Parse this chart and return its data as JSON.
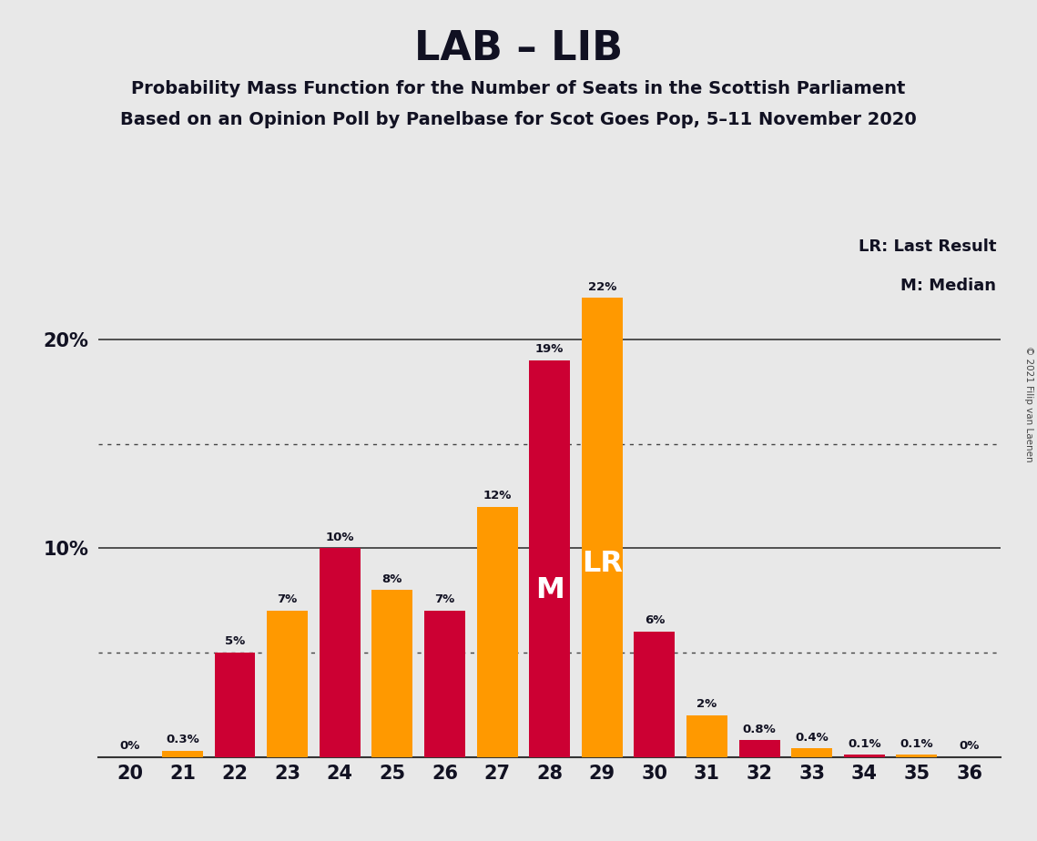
{
  "title": "LAB – LIB",
  "subtitle1": "Probability Mass Function for the Number of Seats in the Scottish Parliament",
  "subtitle2": "Based on an Opinion Poll by Panelbase for Scot Goes Pop, 5–11 November 2020",
  "copyright": "© 2021 Filip van Laenen",
  "legend_lr": "LR: Last Result",
  "legend_m": "M: Median",
  "seats": [
    20,
    21,
    22,
    23,
    24,
    25,
    26,
    27,
    28,
    29,
    30,
    31,
    32,
    33,
    34,
    35,
    36
  ],
  "values": [
    0.0,
    0.3,
    5.0,
    7.0,
    10.0,
    8.0,
    7.0,
    12.0,
    19.0,
    22.0,
    6.0,
    2.0,
    0.8,
    0.4,
    0.1,
    0.1,
    0.0
  ],
  "labels": [
    "0%",
    "0.3%",
    "5%",
    "7%",
    "10%",
    "8%",
    "7%",
    "12%",
    "19%",
    "22%",
    "6%",
    "2%",
    "0.8%",
    "0.4%",
    "0.1%",
    "0.1%",
    "0%"
  ],
  "colors": [
    "#CC0033",
    "#FF9900",
    "#CC0033",
    "#FF9900",
    "#CC0033",
    "#FF9900",
    "#CC0033",
    "#FF9900",
    "#CC0033",
    "#FF9900",
    "#CC0033",
    "#FF9900",
    "#CC0033",
    "#FF9900",
    "#CC0033",
    "#FF9900",
    "#CC0033"
  ],
  "median_seat": 28,
  "lr_seat": 29,
  "background_color": "#E8E8E8",
  "solid_lines": [
    10.0,
    20.0
  ],
  "dotted_lines": [
    5.0,
    15.0
  ],
  "ylim_max": 25.0,
  "bar_width": 0.78
}
